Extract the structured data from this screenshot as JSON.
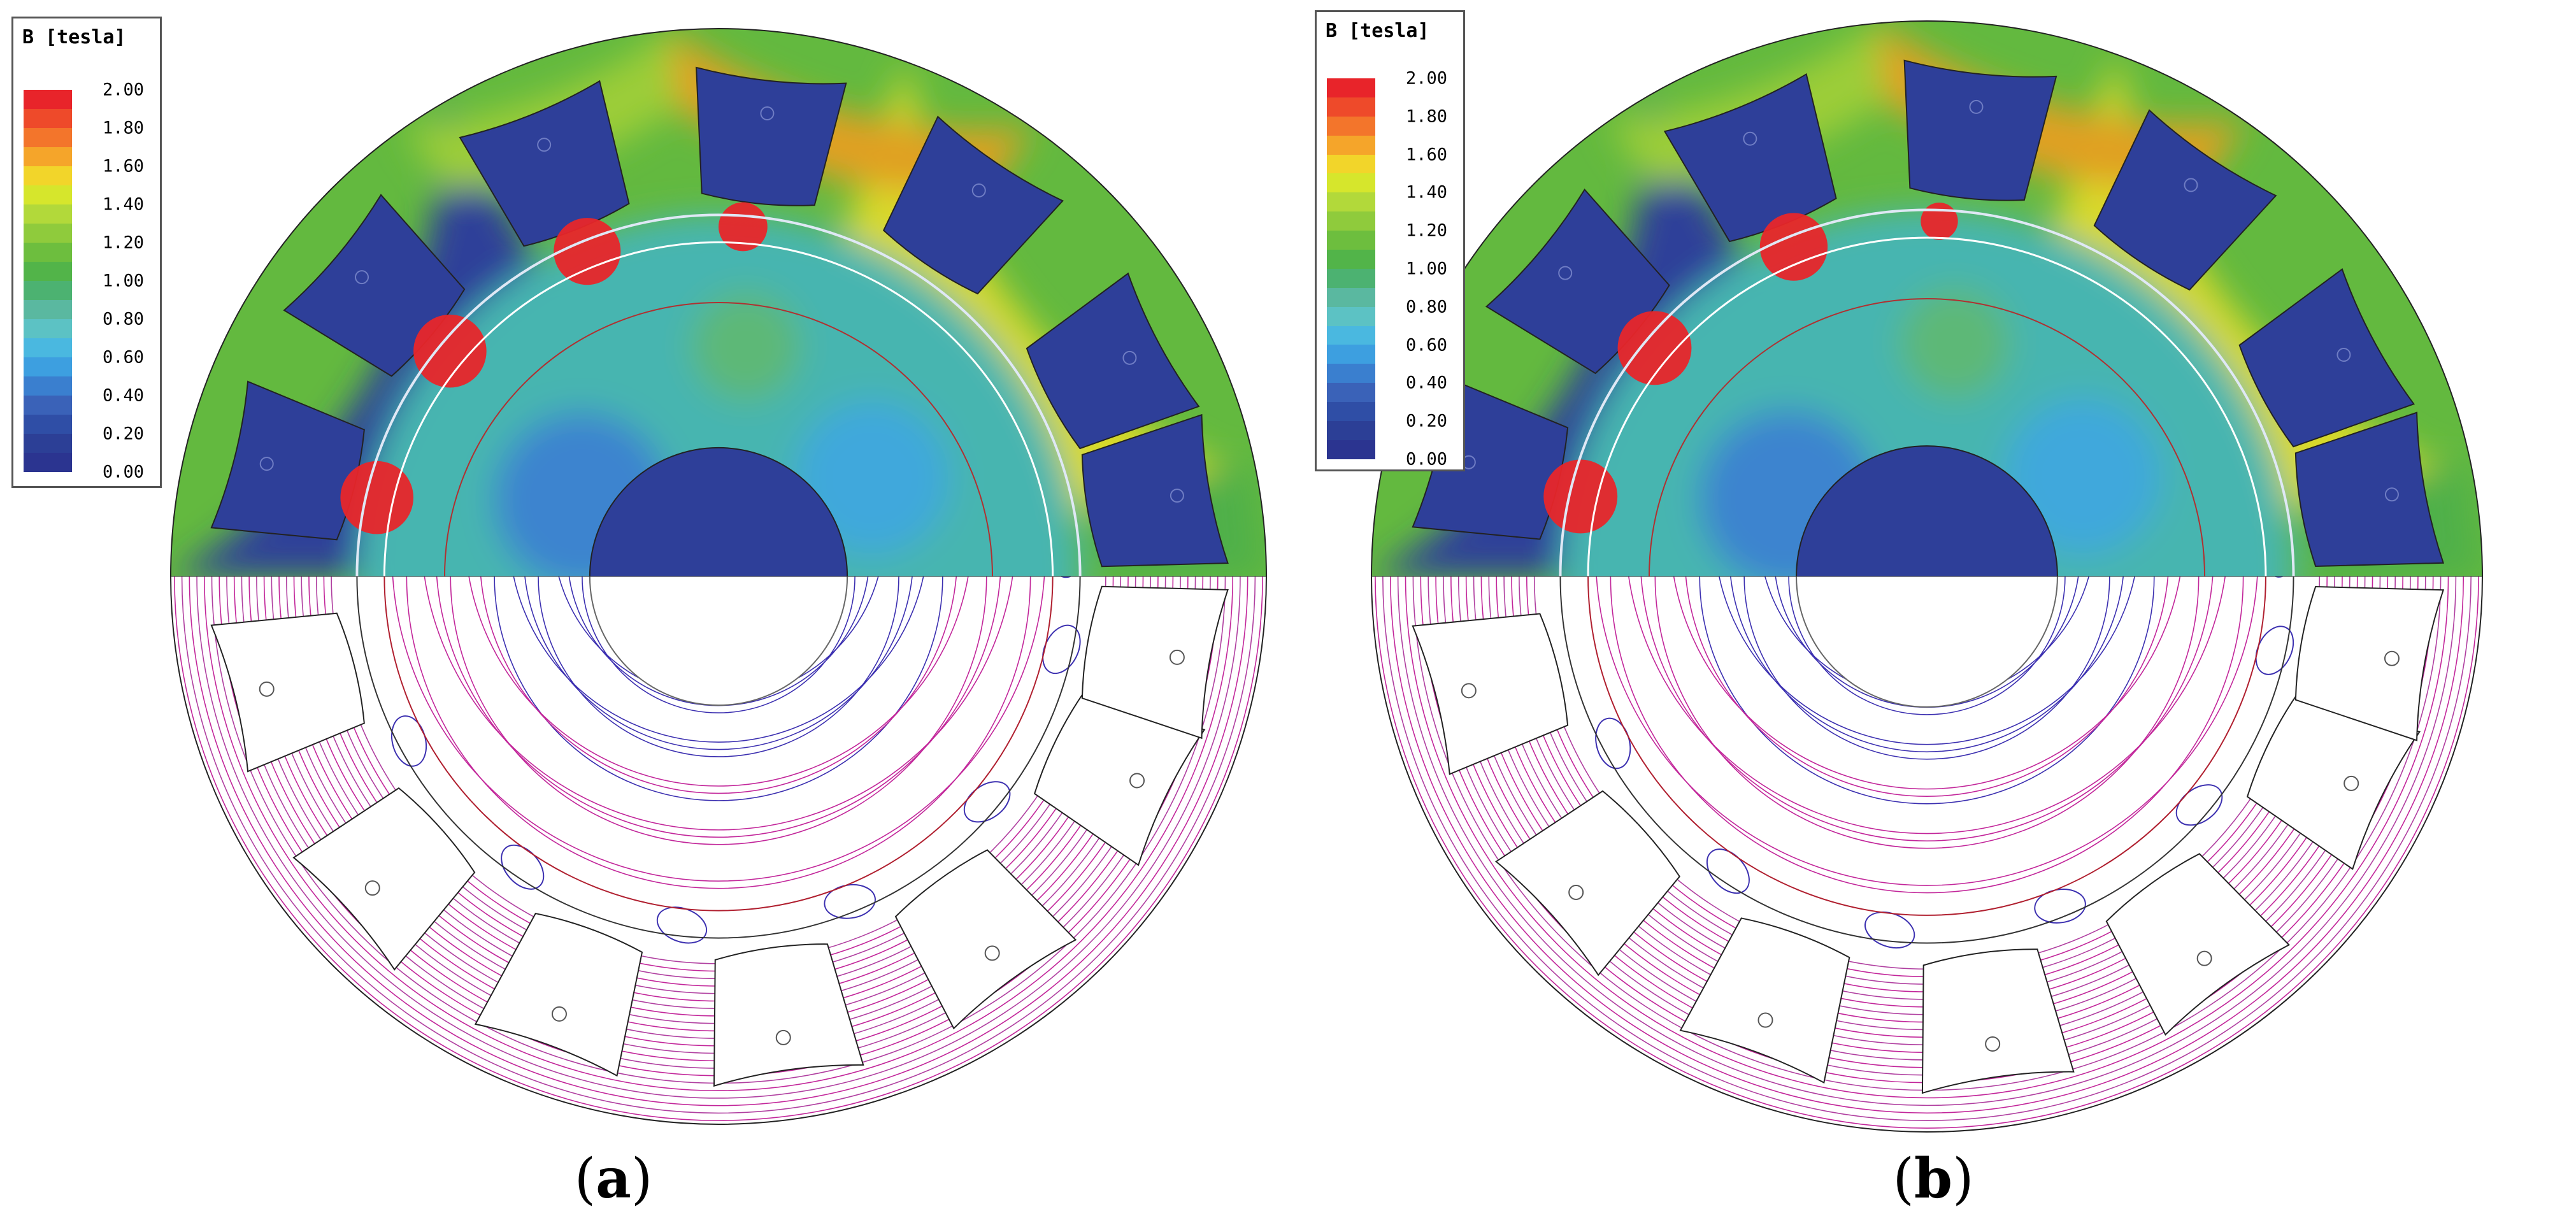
{
  "legend": {
    "title": "B [tesla]",
    "ticks": [
      "2.00",
      "1.80",
      "1.60",
      "1.40",
      "1.20",
      "1.00",
      "0.80",
      "0.60",
      "0.40",
      "0.20",
      "0.00"
    ],
    "colors": [
      "#e8242a",
      "#ee4a2a",
      "#f3752b",
      "#f5a52a",
      "#f2d52a",
      "#d6e62c",
      "#b2d93a",
      "#8fcb3c",
      "#6dbe3e",
      "#52b449",
      "#4cb271",
      "#5ab8a0",
      "#5cc2c4",
      "#4ab8e0",
      "#3d9fe0",
      "#3a7fcf",
      "#3a62b8",
      "#2f4ea6",
      "#2c3f96",
      "#2b3490"
    ]
  },
  "panels": [
    {
      "id": "a",
      "caption": "(a)",
      "caption_letter": "a"
    },
    {
      "id": "b",
      "caption": "(b)",
      "caption_letter": "b"
    }
  ],
  "colors": {
    "background_field": "#3fa7c4",
    "rotor_field": "#46b5b0",
    "yoke_green": "#63b93f",
    "yoke_yellow": "#d8d92a",
    "orange_hot": "#e0a020",
    "magnet_blue": "#2e3f99",
    "saturated": "#e8262a",
    "flux_purple": "#3b2fb0",
    "flux_magenta": "#c2269a",
    "outline": "#222222"
  }
}
